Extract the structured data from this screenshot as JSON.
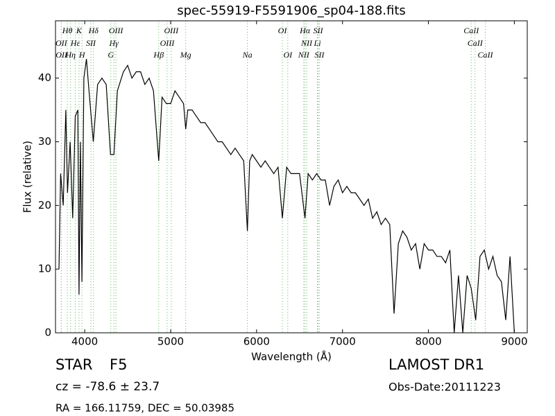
{
  "chart_data": {
    "type": "line",
    "title": "spec-55919-F5591906_sp04-188.fits",
    "xlabel": "Wavelength (Å)",
    "ylabel": "Flux (relative)",
    "xlim": [
      3660,
      9150
    ],
    "ylim": [
      0,
      49
    ],
    "xticks": [
      4000,
      5000,
      6000,
      7000,
      8000,
      9000
    ],
    "yticks": [
      0,
      10,
      20,
      30,
      40
    ],
    "line_color": "#5cb85c",
    "x": [
      3700,
      3720,
      3750,
      3780,
      3800,
      3830,
      3860,
      3890,
      3920,
      3934,
      3950,
      3968,
      3990,
      4020,
      4050,
      4100,
      4150,
      4200,
      4250,
      4300,
      4340,
      4380,
      4450,
      4500,
      4550,
      4600,
      4650,
      4700,
      4750,
      4800,
      4861,
      4900,
      4950,
      5000,
      5050,
      5100,
      5150,
      5175,
      5200,
      5250,
      5300,
      5350,
      5400,
      5450,
      5500,
      5550,
      5600,
      5650,
      5700,
      5750,
      5800,
      5850,
      5893,
      5920,
      5950,
      6000,
      6050,
      6100,
      6150,
      6200,
      6250,
      6300,
      6350,
      6400,
      6450,
      6500,
      6563,
      6600,
      6650,
      6700,
      6750,
      6800,
      6850,
      6900,
      6950,
      7000,
      7050,
      7100,
      7150,
      7200,
      7250,
      7300,
      7350,
      7400,
      7450,
      7500,
      7550,
      7600,
      7650,
      7700,
      7750,
      7800,
      7850,
      7900,
      7950,
      8000,
      8050,
      8100,
      8150,
      8200,
      8250,
      8300,
      8350,
      8400,
      8450,
      8498,
      8550,
      8600,
      8650,
      8700,
      8750,
      8800,
      8850,
      8900,
      8950,
      9000
    ],
    "series": [
      {
        "color": "#000000",
        "values": [
          10,
          25,
          20,
          35,
          22,
          30,
          18,
          34,
          35,
          6,
          30,
          8,
          40,
          43,
          38,
          30,
          39,
          40,
          39,
          28,
          28,
          38,
          41,
          42,
          40,
          41,
          41,
          39,
          40,
          38,
          27,
          37,
          36,
          36,
          38,
          37,
          36,
          32,
          35,
          35,
          34,
          33,
          33,
          32,
          31,
          30,
          30,
          29,
          28,
          29,
          28,
          27,
          16,
          27,
          28,
          27,
          26,
          27,
          26,
          25,
          26,
          18,
          26,
          25,
          25,
          25,
          18,
          25,
          24,
          25,
          24,
          24,
          20,
          23,
          24,
          22,
          23,
          22,
          22,
          21,
          20,
          21,
          18,
          19,
          17,
          18,
          17,
          3,
          14,
          16,
          15,
          13,
          14,
          10,
          14,
          13,
          13,
          12,
          12,
          11,
          13,
          0,
          9,
          0,
          9,
          7,
          2,
          12,
          13,
          10,
          12,
          9,
          8,
          2,
          12,
          0
        ]
      }
    ],
    "annotations": [
      [
        {
          "label": "Hθ",
          "x": 3798
        },
        {
          "label": "K",
          "x": 3934
        },
        {
          "label": "Hδ",
          "x": 4102
        },
        {
          "label": "OIII",
          "x": 4363
        },
        {
          "label": "OIII",
          "x": 5007
        },
        {
          "label": "OI",
          "x": 6300
        },
        {
          "label": "Hα",
          "x": 6563
        },
        {
          "label": "SII",
          "x": 6716
        },
        {
          "label": "CaII",
          "x": 8498
        }
      ],
      [
        {
          "label": "OII",
          "x": 3727
        },
        {
          "label": "Hε",
          "x": 3890
        },
        {
          "label": "SII",
          "x": 4072
        },
        {
          "label": "Hγ",
          "x": 4340
        },
        {
          "label": "OIII",
          "x": 4959
        },
        {
          "label": "NII",
          "x": 6583
        },
        {
          "label": "Li",
          "x": 6708
        },
        {
          "label": "CaII",
          "x": 8542
        }
      ],
      [
        {
          "label": "OII",
          "x": 3729
        },
        {
          "label": "Hη",
          "x": 3835
        },
        {
          "label": "H",
          "x": 3968
        },
        {
          "label": "G",
          "x": 4304
        },
        {
          "label": "Hβ",
          "x": 4861
        },
        {
          "label": "Mg",
          "x": 5175
        },
        {
          "label": "Na",
          "x": 5893
        },
        {
          "label": "OI",
          "x": 6363
        },
        {
          "label": "NII",
          "x": 6548
        },
        {
          "label": "SII",
          "x": 6731
        },
        {
          "label": "CaII",
          "x": 8662
        }
      ]
    ]
  },
  "info": {
    "class": "STAR",
    "subclass": "F5",
    "redshift": "cz = -78.6 ± 23.7",
    "coords": "RA = 166.11759, DEC = 50.03985",
    "survey": "LAMOST DR1",
    "obs_date": "Obs-Date:20111223"
  }
}
